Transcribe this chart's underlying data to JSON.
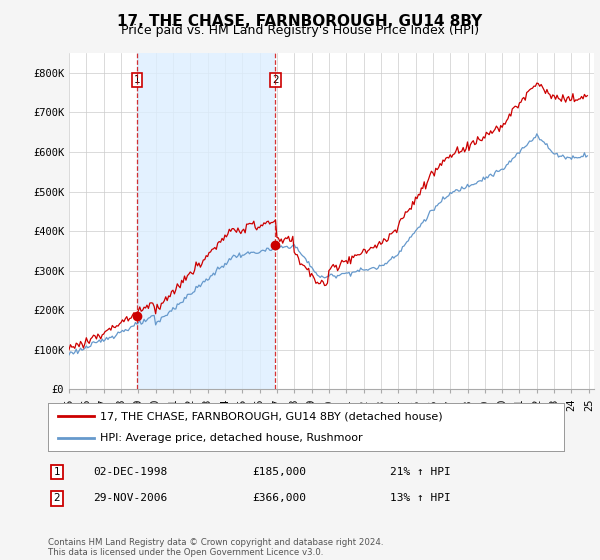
{
  "title": "17, THE CHASE, FARNBOROUGH, GU14 8BY",
  "subtitle": "Price paid vs. HM Land Registry's House Price Index (HPI)",
  "ylim": [
    0,
    850000
  ],
  "yticks": [
    0,
    100000,
    200000,
    300000,
    400000,
    500000,
    600000,
    700000,
    800000
  ],
  "ytick_labels": [
    "£0",
    "£100K",
    "£200K",
    "£300K",
    "£400K",
    "£500K",
    "£600K",
    "£700K",
    "£800K"
  ],
  "hpi_color": "#6699cc",
  "price_color": "#cc0000",
  "shade_color": "#ddeeff",
  "marker_color": "#cc0000",
  "background_color": "#f5f5f5",
  "plot_bg_color": "#ffffff",
  "grid_color": "#cccccc",
  "sale1_year": 1998.92,
  "sale1_price": 185000,
  "sale1_label": "1",
  "sale2_year": 2006.91,
  "sale2_price": 366000,
  "sale2_label": "2",
  "legend_line1": "17, THE CHASE, FARNBOROUGH, GU14 8BY (detached house)",
  "legend_line2": "HPI: Average price, detached house, Rushmoor",
  "ann1_date": "02-DEC-1998",
  "ann1_price": "£185,000",
  "ann1_hpi": "21% ↑ HPI",
  "ann2_date": "29-NOV-2006",
  "ann2_price": "£366,000",
  "ann2_hpi": "13% ↑ HPI",
  "footnote": "Contains HM Land Registry data © Crown copyright and database right 2024.\nThis data is licensed under the Open Government Licence v3.0.",
  "title_fontsize": 11,
  "subtitle_fontsize": 9,
  "tick_fontsize": 7.5,
  "legend_fontsize": 8,
  "ann_fontsize": 8
}
